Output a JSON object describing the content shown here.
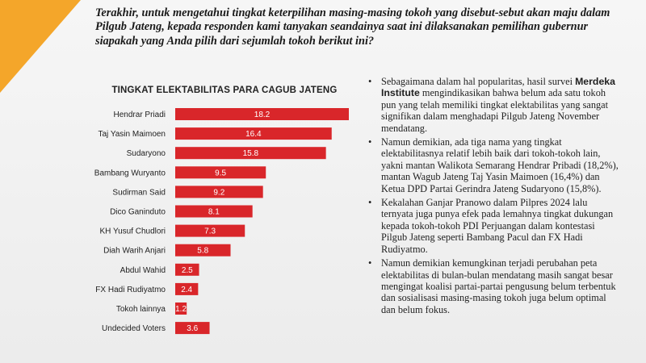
{
  "colors": {
    "accent": "#f4a62a",
    "bar": "#d9262a"
  },
  "intro_text": "Terakhir, untuk mengetahui tingkat keterpilihan masing-masing tokoh yang disebut-sebut akan maju dalam Pilgub Jateng, kepada responden kami tanyakan seandainya saat ini dilaksanakan pemilihan gubernur siapakah yang Anda pilih dari sejumlah tokoh berikut ini?",
  "chart_data": {
    "type": "bar",
    "orientation": "horizontal",
    "title": "TINGKAT ELEKTABILITAS PARA CAGUB JATENG",
    "categories": [
      "Hendrar Priadi",
      "Taj Yasin Maimoen",
      "Sudaryono",
      "Bambang Wuryanto",
      "Sudirman Said",
      "Dico Ganinduto",
      "KH Yusuf Chudlori",
      "Diah Warih Anjari",
      "Abdul Wahid",
      "FX Hadi Rudiyatmo",
      "Tokoh lainnya",
      "Undecided Voters"
    ],
    "values": [
      18.2,
      16.4,
      15.8,
      9.5,
      9.2,
      8.1,
      7.3,
      5.8,
      2.5,
      2.4,
      1.2,
      3.6
    ],
    "value_labels": [
      "18.2",
      "16.4",
      "15.8",
      "9.5",
      "9.2",
      "8.1",
      "7.3",
      "5.8",
      "2.5",
      "2.4",
      "1.2",
      "3.6"
    ],
    "xlim": [
      0,
      18.2
    ],
    "grid": false
  },
  "bullets": [
    {
      "parts": [
        {
          "text": "Sebagaimana dalam hal popularitas, hasil survei "
        },
        {
          "text": "Merdeka Institute",
          "bold": true
        },
        {
          "text": " mengindikasikan bahwa belum ada satu tokoh pun yang telah memiliki tingkat elektabilitas yang sangat signifikan dalam menghadapi Pilgub Jateng November mendatang."
        }
      ]
    },
    {
      "parts": [
        {
          "text": "Namun demikian, ada tiga nama yang tingkat elektabilitasnya relatif lebih baik dari tokoh-tokoh lain, yakni mantan Walikota Semarang Hendrar Pribadi (18,2%), mantan Wagub Jateng Taj Yasin Maimoen (16,4%) dan Ketua DPD Partai Gerindra Jateng Sudaryono (15,8%)."
        }
      ]
    },
    {
      "parts": [
        {
          "text": "Kekalahan Ganjar Pranowo dalam Pilpres 2024 lalu ternyata juga punya efek pada lemahnya tingkat dukungan kepada tokoh-tokoh PDI Perjuangan dalam kontestasi Pilgub Jateng seperti Bambang Pacul dan FX Hadi Rudiyatmo."
        }
      ]
    },
    {
      "parts": [
        {
          "text": "Namun demikian kemungkinan terjadi perubahan peta elektabilitas di bulan-bulan mendatang masih  sangat besar mengingat koalisi partai-partai pengusung belum terbentuk dan sosialisasi masing-masing tokoh juga belum optimal dan belum fokus."
        }
      ]
    }
  ]
}
